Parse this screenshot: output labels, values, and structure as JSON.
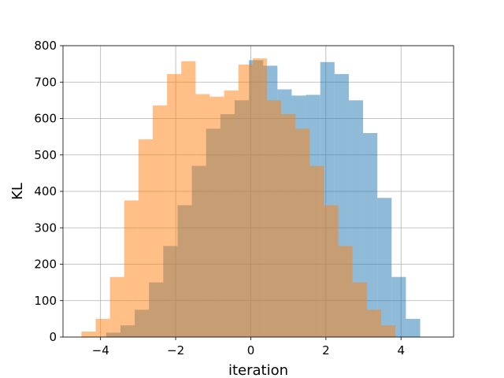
{
  "chart_data": {
    "type": "bar",
    "title": "",
    "xlabel": "iteration",
    "ylabel": "KL",
    "xlim": [
      -5.0,
      5.4
    ],
    "ylim": [
      0,
      800
    ],
    "xticks": [
      -4,
      -2,
      0,
      2,
      4
    ],
    "xtick_labels": [
      "−4",
      "−2",
      "0",
      "2",
      "4"
    ],
    "yticks": [
      0,
      100,
      200,
      300,
      400,
      500,
      600,
      700,
      800
    ],
    "ytick_labels": [
      "0",
      "100",
      "200",
      "300",
      "400",
      "500",
      "600",
      "700",
      "800"
    ],
    "grid": true,
    "legend": "none",
    "series": [
      {
        "color": "#1f77b4",
        "alpha": 0.5,
        "bin_edges": [
          -3.85,
          -3.47,
          -3.09,
          -2.71,
          -2.33,
          -1.95,
          -1.57,
          -1.19,
          -0.81,
          -0.43,
          -0.05,
          0.33,
          0.71,
          1.09,
          1.47,
          1.85,
          2.23,
          2.61,
          2.99,
          3.37,
          3.75,
          4.13,
          4.51
        ],
        "counts": [
          12,
          32,
          75,
          150,
          250,
          362,
          470,
          572,
          612,
          650,
          760,
          745,
          680,
          663,
          665,
          755,
          722,
          650,
          560,
          382,
          165,
          50,
          15
        ]
      },
      {
        "color": "#ff7f0e",
        "alpha": 0.5,
        "bin_edges": [
          -4.51,
          -4.13,
          -3.75,
          -3.37,
          -2.99,
          -2.61,
          -2.23,
          -1.85,
          -1.47,
          -1.09,
          -0.71,
          -0.33,
          0.05,
          0.43,
          0.81,
          1.19,
          1.57,
          1.95,
          2.33,
          2.71,
          3.09,
          3.47,
          3.85
        ],
        "counts": [
          15,
          50,
          165,
          375,
          543,
          636,
          722,
          757,
          667,
          660,
          677,
          748,
          765,
          650,
          612,
          572,
          470,
          362,
          250,
          150,
          75,
          32,
          12
        ]
      }
    ]
  }
}
